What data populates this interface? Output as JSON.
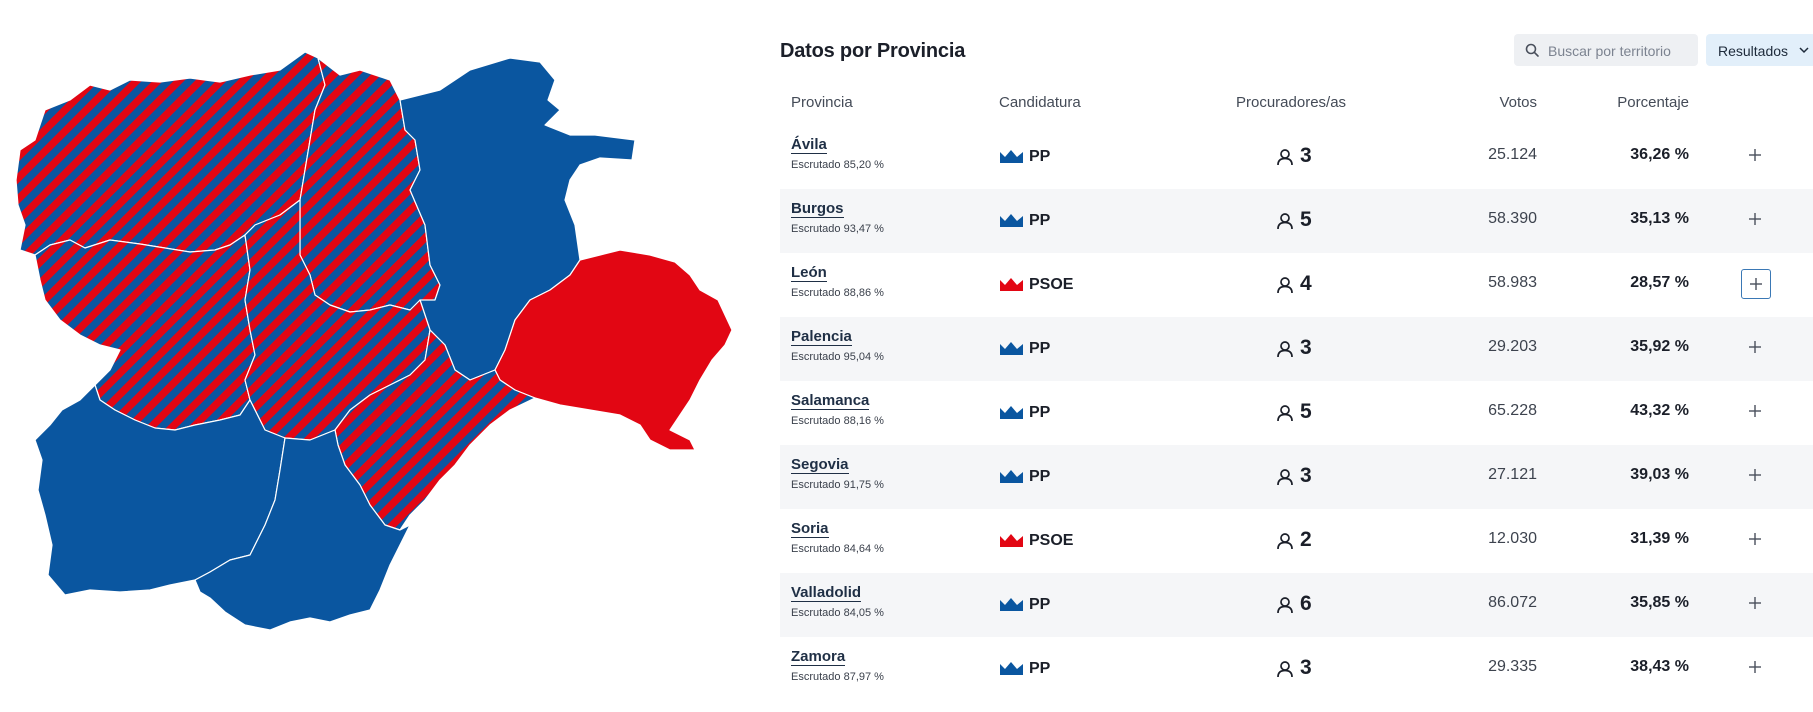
{
  "colors": {
    "pp": "#0a56a0",
    "psoe": "#e20613",
    "focus": "#3a78b5"
  },
  "panel": {
    "title": "Datos por Provincia",
    "search_placeholder": "Buscar por territorio",
    "results_label": "Resultados",
    "columns": {
      "provincia": "Provincia",
      "candidatura": "Candidatura",
      "procuradores": "Procuradores/as",
      "votos": "Votos",
      "porcentaje": "Porcentaje"
    }
  },
  "rows": [
    {
      "provincia": "Ávila",
      "escrutado": "Escrutado 85,20 %",
      "partido": "PP",
      "procuradores": "3",
      "votos": "25.124",
      "porcentaje": "36,26 %"
    },
    {
      "provincia": "Burgos",
      "escrutado": "Escrutado 93,47 %",
      "partido": "PP",
      "procuradores": "5",
      "votos": "58.390",
      "porcentaje": "35,13 %"
    },
    {
      "provincia": "León",
      "escrutado": "Escrutado 88,86 %",
      "partido": "PSOE",
      "procuradores": "4",
      "votos": "58.983",
      "porcentaje": "28,57 %"
    },
    {
      "provincia": "Palencia",
      "escrutado": "Escrutado 95,04 %",
      "partido": "PP",
      "procuradores": "3",
      "votos": "29.203",
      "porcentaje": "35,92 %"
    },
    {
      "provincia": "Salamanca",
      "escrutado": "Escrutado 88,16 %",
      "partido": "PP",
      "procuradores": "5",
      "votos": "65.228",
      "porcentaje": "43,32 %"
    },
    {
      "provincia": "Segovia",
      "escrutado": "Escrutado 91,75 %",
      "partido": "PP",
      "procuradores": "3",
      "votos": "27.121",
      "porcentaje": "39,03 %"
    },
    {
      "provincia": "Soria",
      "escrutado": "Escrutado 84,64 %",
      "partido": "PSOE",
      "procuradores": "2",
      "votos": "12.030",
      "porcentaje": "31,39 %"
    },
    {
      "provincia": "Valladolid",
      "escrutado": "Escrutado 84,05 %",
      "partido": "PP",
      "procuradores": "6",
      "votos": "86.072",
      "porcentaje": "35,85 %"
    },
    {
      "provincia": "Zamora",
      "escrutado": "Escrutado 87,97 %",
      "partido": "PP",
      "procuradores": "3",
      "votos": "29.335",
      "porcentaje": "38,43 %"
    }
  ],
  "map": {
    "regions": [
      {
        "id": "region-north-west",
        "fill": "hatched"
      },
      {
        "id": "region-north-central",
        "fill": "hatched"
      },
      {
        "id": "region-north-east",
        "fill": "pp"
      },
      {
        "id": "region-east",
        "fill": "psoe"
      },
      {
        "id": "region-west",
        "fill": "hatched"
      },
      {
        "id": "region-center",
        "fill": "hatched"
      },
      {
        "id": "region-south-east",
        "fill": "hatched"
      },
      {
        "id": "region-south-west",
        "fill": "pp"
      },
      {
        "id": "region-south",
        "fill": "pp"
      }
    ]
  }
}
